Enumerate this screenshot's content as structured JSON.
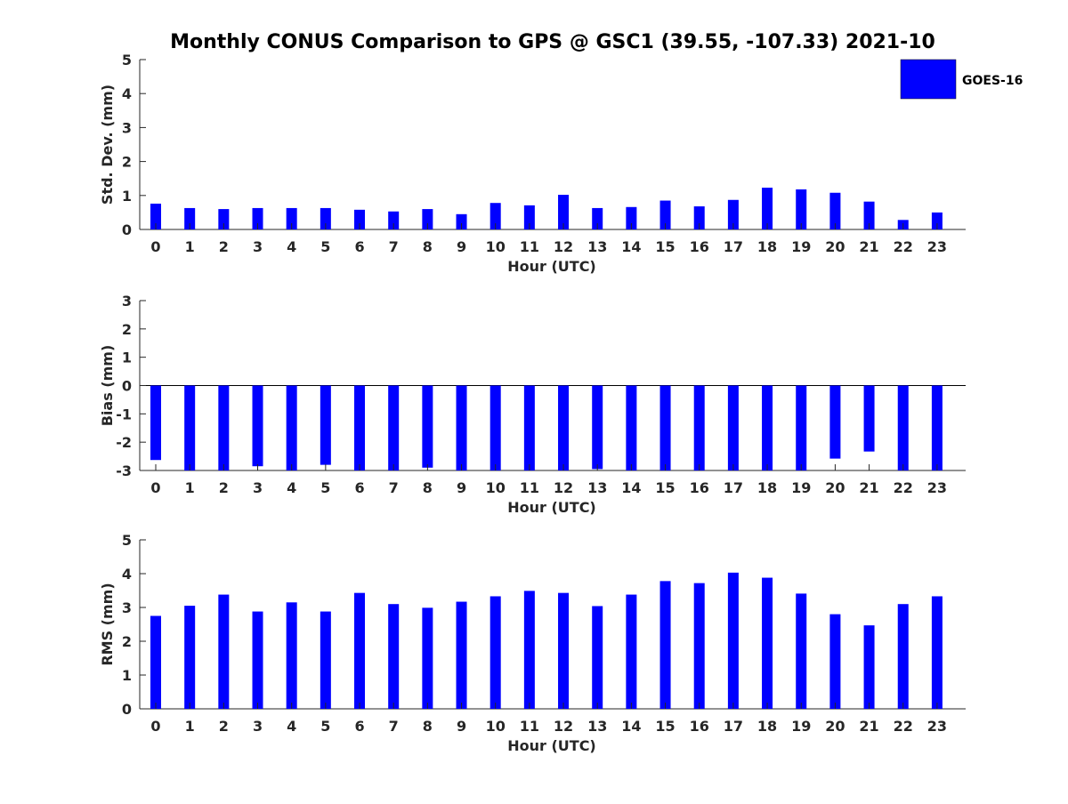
{
  "title": "Monthly CONUS Comparison to GPS @ GSC1 (39.55, -107.33) 2021-10",
  "legend": {
    "label": "GOES-16",
    "color": "#0000ff",
    "placement": "top-right"
  },
  "chart_data": [
    {
      "type": "bar",
      "name": "std",
      "xlabel": "Hour (UTC)",
      "ylabel": "Std. Dev. (mm)",
      "ylim": [
        0,
        5
      ],
      "yticks": [
        "0",
        "1",
        "2",
        "3",
        "4",
        "5"
      ],
      "categories": [
        "0",
        "1",
        "2",
        "3",
        "4",
        "5",
        "6",
        "7",
        "8",
        "9",
        "10",
        "11",
        "12",
        "13",
        "14",
        "15",
        "16",
        "17",
        "18",
        "19",
        "20",
        "21",
        "22",
        "23"
      ],
      "values": [
        0.76,
        0.63,
        0.6,
        0.63,
        0.63,
        0.63,
        0.58,
        0.53,
        0.6,
        0.45,
        0.78,
        0.71,
        1.02,
        0.63,
        0.66,
        0.85,
        0.68,
        0.87,
        1.23,
        1.18,
        1.08,
        0.82,
        0.28,
        0.5
      ],
      "color": "#0000ff"
    },
    {
      "type": "bar",
      "name": "bias",
      "xlabel": "Hour (UTC)",
      "ylabel": "Bias (mm)",
      "ylim": [
        -3,
        3
      ],
      "yticks": [
        "-3",
        "-2",
        "-1",
        "0",
        "1",
        "2",
        "3"
      ],
      "categories": [
        "0",
        "1",
        "2",
        "3",
        "4",
        "5",
        "6",
        "7",
        "8",
        "9",
        "10",
        "11",
        "12",
        "13",
        "14",
        "15",
        "16",
        "17",
        "18",
        "19",
        "20",
        "21",
        "22",
        "23"
      ],
      "values": [
        -2.63,
        -3.0,
        -3.0,
        -2.85,
        -3.0,
        -2.8,
        -3.0,
        -3.0,
        -2.9,
        -3.0,
        -3.0,
        -3.0,
        -3.0,
        -2.95,
        -3.0,
        -3.0,
        -3.0,
        -3.0,
        -3.0,
        -3.0,
        -2.58,
        -2.33,
        -3.0,
        -3.0
      ],
      "color": "#0000ff"
    },
    {
      "type": "bar",
      "name": "rms",
      "xlabel": "Hour (UTC)",
      "ylabel": "RMS (mm)",
      "ylim": [
        0,
        5
      ],
      "yticks": [
        "0",
        "1",
        "2",
        "3",
        "4",
        "5"
      ],
      "categories": [
        "0",
        "1",
        "2",
        "3",
        "4",
        "5",
        "6",
        "7",
        "8",
        "9",
        "10",
        "11",
        "12",
        "13",
        "14",
        "15",
        "16",
        "17",
        "18",
        "19",
        "20",
        "21",
        "22",
        "23"
      ],
      "values": [
        2.75,
        3.05,
        3.38,
        2.88,
        3.15,
        2.88,
        3.43,
        3.1,
        2.99,
        3.17,
        3.33,
        3.49,
        3.43,
        3.04,
        3.38,
        3.78,
        3.72,
        4.03,
        3.88,
        3.41,
        2.8,
        2.47,
        3.1,
        3.33
      ],
      "color": "#0000ff"
    }
  ]
}
